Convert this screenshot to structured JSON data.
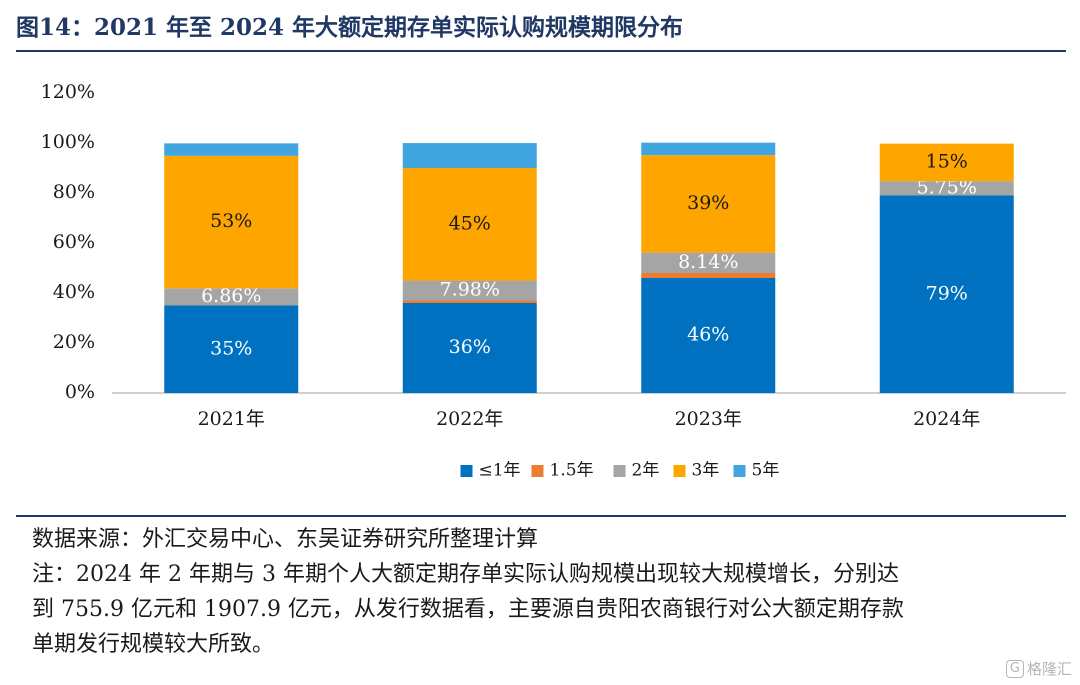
{
  "title": "图14：2021 年至 2024 年大额定期存单实际认购规模期限分布",
  "chart_data": {
    "type": "bar",
    "stacked": true,
    "categories": [
      "2021年",
      "2022年",
      "2023年",
      "2024年"
    ],
    "series": [
      {
        "name": "≤1年",
        "color": "#0070C0",
        "values": [
          35,
          36,
          46,
          79
        ],
        "labels": [
          "35%",
          "36%",
          "46%",
          "79%"
        ]
      },
      {
        "name": "1.5年",
        "color": "#ED7D31",
        "values": [
          0,
          1,
          2,
          0
        ],
        "labels": [
          "",
          "",
          "",
          ""
        ]
      },
      {
        "name": "2年",
        "color": "#A5A5A5",
        "values": [
          6.86,
          7.98,
          8.14,
          5.75
        ],
        "labels": [
          "6.86%",
          "7.98%",
          "8.14%",
          "5.75%"
        ]
      },
      {
        "name": "3年",
        "color": "#FFA500",
        "values": [
          53,
          45,
          39,
          15
        ],
        "labels": [
          "53%",
          "45%",
          "39%",
          "15%"
        ]
      },
      {
        "name": "5年",
        "color": "#41A6E0",
        "values": [
          5,
          10,
          5,
          0
        ],
        "labels": [
          "",
          "",
          "",
          ""
        ]
      }
    ],
    "ylim": [
      0,
      120
    ],
    "yticks": [
      "0%",
      "20%",
      "40%",
      "60%",
      "80%",
      "100%",
      "120%"
    ],
    "legend_position": "bottom",
    "grid": false
  },
  "source": "数据来源：外汇交易中心、东吴证券研究所整理计算",
  "note_lines": [
    "注：2024 年 2 年期与 3 年期个人大额定期存单实际认购规模出现较大规模增长，分别达",
    "到 755.9 亿元和 1907.9 亿元，从发行数据看，主要源自贵阳农商银行对公大额定期存款",
    "单期发行规模较大所致。"
  ],
  "watermark": {
    "icon": "G",
    "text": "格隆汇"
  }
}
